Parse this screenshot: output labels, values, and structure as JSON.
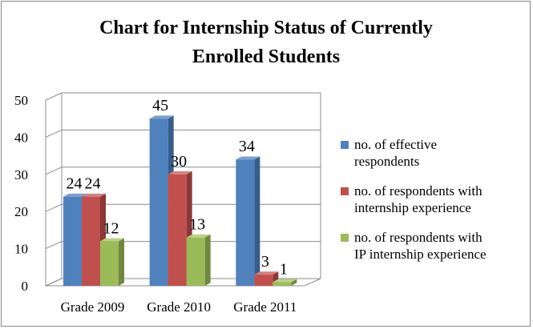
{
  "chart_data": {
    "type": "bar",
    "title_lines": [
      "Chart for Internship Status of Currently",
      "Enrolled Students"
    ],
    "categories": [
      "Grade 2009",
      "Grade 2010",
      "Grade 2011"
    ],
    "series": [
      {
        "name": "no. of effective respondents",
        "legend_lines": [
          "no. of effective",
          "respondents"
        ],
        "values": [
          24,
          45,
          34
        ],
        "color": "#4F81BD",
        "side_color": "#385D8A",
        "top_color": "#7BA0D0"
      },
      {
        "name": "no. of respondents with internship experience",
        "legend_lines": [
          "no. of respondents with",
          "internship experience"
        ],
        "values": [
          24,
          30,
          3
        ],
        "color": "#C0504D",
        "side_color": "#8C3836",
        "top_color": "#D6807E"
      },
      {
        "name": "no. of respondents with IP internship experience",
        "legend_lines": [
          "no. of respondents with",
          "IP internship experience"
        ],
        "values": [
          12,
          13,
          1
        ],
        "color": "#9BBB59",
        "side_color": "#71893F",
        "top_color": "#B9D288"
      }
    ],
    "ylim": [
      0,
      50
    ],
    "yticks": [
      "0",
      "10",
      "20",
      "30",
      "40",
      "50"
    ],
    "grid": true,
    "legend_position": "right",
    "three_d": true
  }
}
